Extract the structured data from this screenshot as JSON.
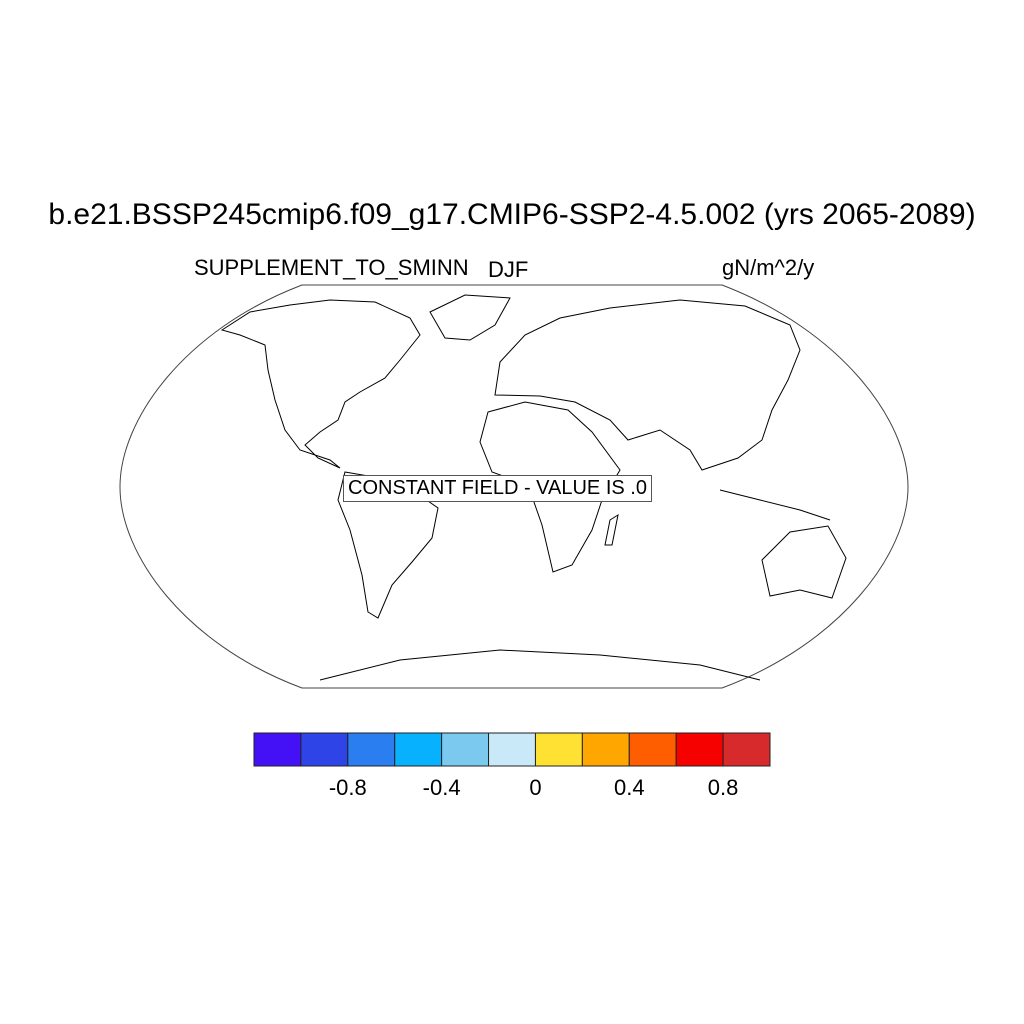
{
  "title": "b.e21.BSSP245cmip6.f09_g17.CMIP6-SSP2-4.5.002 (yrs 2065-2089)",
  "left_subtitle": "SUPPLEMENT_TO_SMINN",
  "center_subtitle": "DJF",
  "right_subtitle": "gN/m^2/y",
  "message": "CONSTANT FIELD - VALUE IS .0",
  "projection": "Robinson",
  "colorbar": {
    "colors": [
      "#4410f5",
      "#2e44e6",
      "#2b7ef0",
      "#07b1fd",
      "#7cc9f0",
      "#c9e8f8",
      "#ffe133",
      "#ffa600",
      "#ff5e00",
      "#f60000",
      "#d62a2c"
    ],
    "levels": [
      -1.0,
      -0.8,
      -0.6,
      -0.4,
      -0.2,
      0,
      0.2,
      0.4,
      0.6,
      0.8
    ],
    "labels": [
      "-0.8",
      "-0.4",
      "0",
      "0.4",
      "0.8"
    ]
  }
}
